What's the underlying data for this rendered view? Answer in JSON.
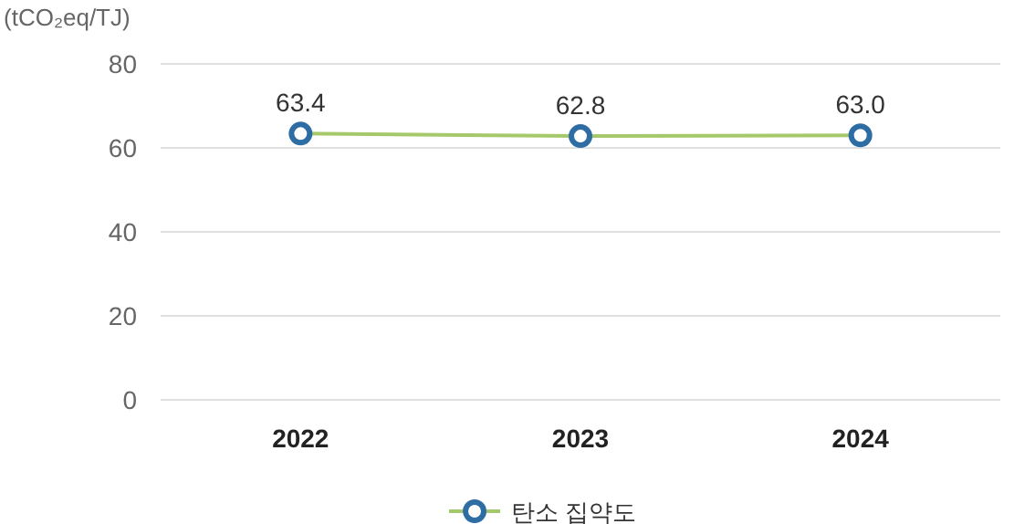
{
  "chart_data": {
    "type": "line",
    "ylabel": "(tCO₂eq/TJ)",
    "categories": [
      "2022",
      "2023",
      "2024"
    ],
    "series": [
      {
        "name": "탄소 집약도",
        "color": "#a5c86b",
        "values": [
          63.4,
          62.8,
          63.0
        ],
        "value_labels": [
          "63.4",
          "62.8",
          "63.0"
        ]
      }
    ],
    "ylim": [
      0,
      80
    ],
    "yticks": [
      0,
      20,
      40,
      60,
      80
    ],
    "grid": "y",
    "legend": "bottom",
    "marker": "circle"
  }
}
